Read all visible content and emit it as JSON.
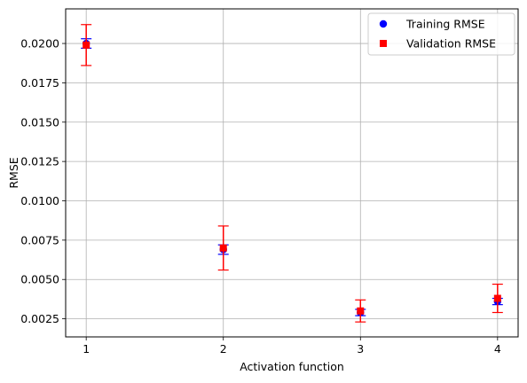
{
  "chart_data": {
    "type": "scatter",
    "title": "",
    "xlabel": "Activation function",
    "ylabel": "RMSE",
    "x": [
      1,
      2,
      3,
      4
    ],
    "xlim": [
      0.85,
      4.15
    ],
    "ylim": [
      0.00135,
      0.0222
    ],
    "x_ticks": [
      "1",
      "2",
      "3",
      "4"
    ],
    "y_ticks": [
      "0.0025",
      "0.0050",
      "0.0075",
      "0.0100",
      "0.0125",
      "0.0150",
      "0.0175",
      "0.0200"
    ],
    "grid": true,
    "legend_position": "upper right",
    "series": [
      {
        "name": "Training RMSE",
        "marker": "circle",
        "color": "#0000ff",
        "values": [
          0.02,
          0.0069,
          0.0029,
          0.0036
        ],
        "errors": [
          0.0003,
          0.0003,
          0.0002,
          0.0002
        ]
      },
      {
        "name": "Validation RMSE",
        "marker": "square",
        "color": "#ff0000",
        "values": [
          0.0199,
          0.007,
          0.003,
          0.0038
        ],
        "errors": [
          0.0013,
          0.0014,
          0.0007,
          0.0009
        ]
      }
    ]
  }
}
